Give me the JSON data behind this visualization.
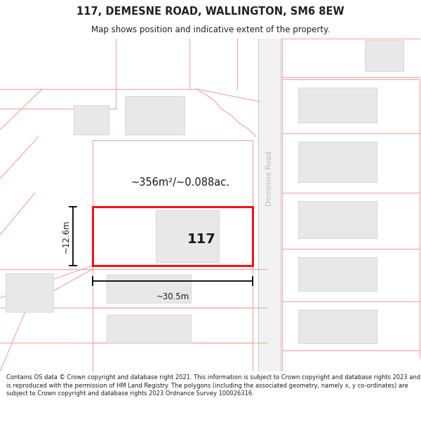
{
  "title": "117, DEMESNE ROAD, WALLINGTON, SM6 8EW",
  "subtitle": "Map shows position and indicative extent of the property.",
  "footer": "Contains OS data © Crown copyright and database right 2021. This information is subject to Crown copyright and database rights 2023 and is reproduced with the permission of HM Land Registry. The polygons (including the associated geometry, namely x, y co-ordinates) are subject to Crown copyright and database rights 2023 Ordnance Survey 100026316.",
  "background_color": "#ffffff",
  "plot_color": "#ff0000",
  "neighbor_fill": "#e8e8e8",
  "road_line_color": "#f5aaaa",
  "road_area_color": "#f0f0f0",
  "street_text_color": "#bbbbbb",
  "dim_color": "#000000",
  "area_text": "~356m²/~0.088ac.",
  "width_text": "~30.5m",
  "height_text": "~12.6m",
  "number_text": "117",
  "street_name": "Demesne Road",
  "title_fontsize": 10.5,
  "subtitle_fontsize": 8.5,
  "footer_fontsize": 6.0
}
